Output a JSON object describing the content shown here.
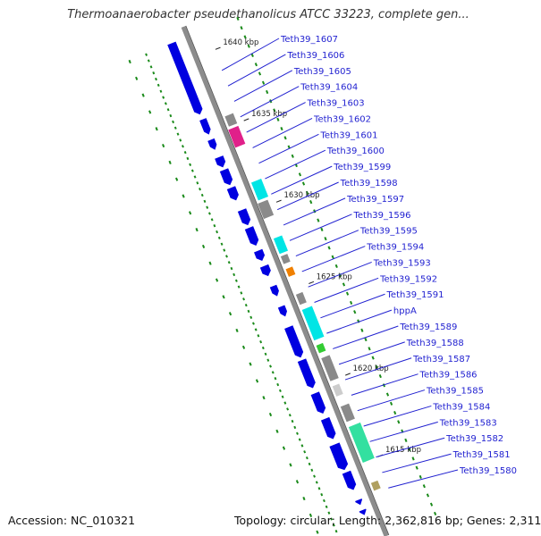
{
  "title": "Thermoanaerobacter pseudethanolicus ATCC 33223, complete gen...",
  "footer": {
    "accession": "Accession: NC_010321",
    "stats": "Topology: circular; Length: 2,362,816 bp; Genes: 2,311"
  },
  "colors": {
    "backbone": "#8c8c8c",
    "forward_gene": "#0000e0",
    "label": "#1f1fd0",
    "gc_skew_dash": "#1a8a1a",
    "cyan_gene": "#00e5e5",
    "grey_gene": "#8a8a8a",
    "magenta_gene": "#e0208a",
    "orange_gene": "#f08000",
    "green_gene": "#33cc33",
    "teal_gene": "#33e0a0"
  },
  "kbp_ticks": [
    {
      "label": "1640 kbp",
      "kbp": 1640
    },
    {
      "label": "1635 kbp",
      "kbp": 1635
    },
    {
      "label": "1630 kbp",
      "kbp": 1630
    },
    {
      "label": "1625 kbp",
      "kbp": 1625
    },
    {
      "label": "1620 kbp",
      "kbp": 1620
    },
    {
      "label": "1615 kbp",
      "kbp": 1615
    }
  ],
  "gene_labels": [
    "Teth39_1607",
    "Teth39_1606",
    "Teth39_1605",
    "Teth39_1604",
    "Teth39_1603",
    "Teth39_1602",
    "Teth39_1601",
    "Teth39_1600",
    "Teth39_1599",
    "Teth39_1598",
    "Teth39_1597",
    "Teth39_1596",
    "Teth39_1595",
    "Teth39_1594",
    "Teth39_1593",
    "Teth39_1592",
    "Teth39_1591",
    "hppA",
    "Teth39_1589",
    "Teth39_1588",
    "Teth39_1587",
    "Teth39_1586",
    "Teth39_1585",
    "Teth39_1584",
    "Teth39_1583",
    "Teth39_1582",
    "Teth39_1581",
    "Teth39_1580"
  ]
}
